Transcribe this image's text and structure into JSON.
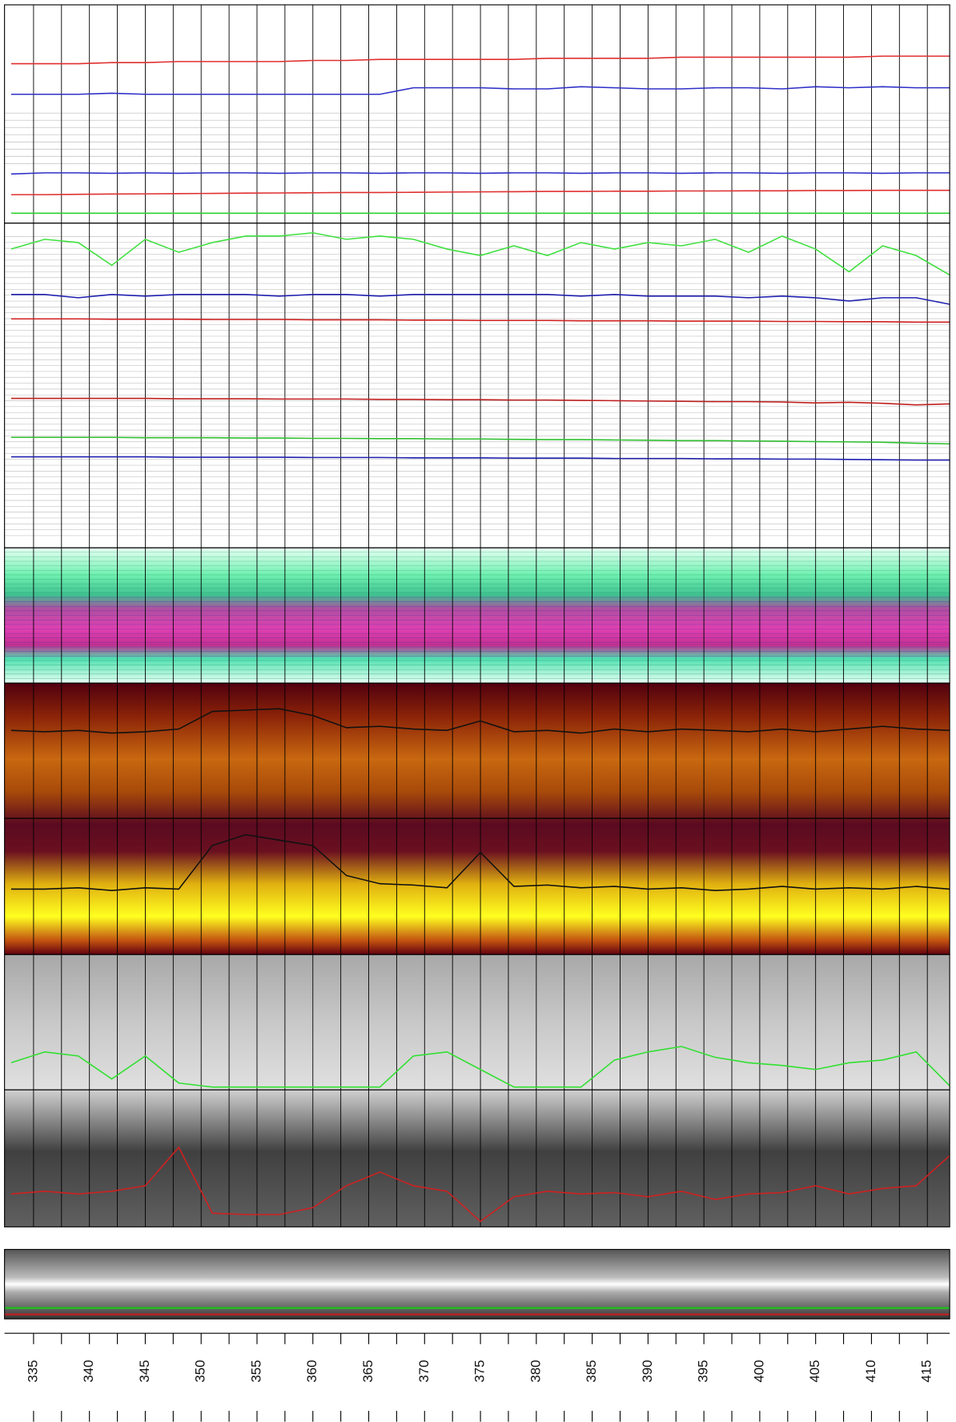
{
  "chart_data": {
    "type": "line",
    "xlim": [
      332.4,
      417
    ],
    "xticks": [
      335,
      340,
      345,
      350,
      355,
      360,
      365,
      370,
      375,
      380,
      385,
      390,
      395,
      400,
      405,
      410,
      415
    ],
    "xminorticks": [
      335,
      337.5,
      340,
      342.5,
      345,
      347.5,
      350,
      352.5,
      355,
      357.5,
      360,
      362.5,
      365,
      367.5,
      370,
      372.5,
      375,
      377.5,
      380,
      382.5,
      385,
      387.5,
      390,
      392.5,
      395,
      397.5,
      400,
      402.5,
      405,
      407.5,
      410,
      412.5,
      415
    ],
    "grid": true,
    "x": [
      333,
      336,
      339,
      342,
      345,
      348,
      351,
      354,
      357,
      360,
      363,
      366,
      369,
      372,
      375,
      378,
      381,
      384,
      387,
      390,
      393,
      396,
      399,
      402,
      405,
      408,
      411,
      414,
      417
    ],
    "panels": [
      {
        "ylim": [
          0,
          100
        ],
        "series": [
          {
            "color": "#e03030",
            "values": [
              73,
              73,
              73,
              73.5,
              73.5,
              74,
              74,
              74,
              74,
              74.5,
              74.5,
              75,
              75,
              75,
              75,
              75,
              75.5,
              75.5,
              75.5,
              75.5,
              76,
              76,
              76,
              76,
              76,
              76,
              76.5,
              76.5,
              76.5
            ]
          },
          {
            "color": "#3030c8",
            "values": [
              59,
              59,
              59,
              59.5,
              59,
              59,
              59,
              59,
              59,
              59,
              59,
              59,
              62,
              62,
              62,
              61.5,
              61.5,
              62.5,
              62,
              61.5,
              61.5,
              62,
              62,
              61.5,
              62.5,
              62,
              62.5,
              62,
              62
            ]
          },
          {
            "color": "#3030c8",
            "values": [
              22.5,
              23,
              23,
              22.8,
              23,
              22.8,
              23,
              23,
              22.8,
              23,
              23,
              22.8,
              23,
              23,
              22.8,
              23,
              23,
              22.8,
              23,
              23,
              22.8,
              23,
              23,
              22.8,
              23,
              23,
              22.8,
              23,
              23
            ]
          },
          {
            "color": "#e03030",
            "values": [
              13,
              13,
              13.2,
              13.3,
              13.4,
              13.5,
              13.6,
              13.7,
              13.8,
              13.9,
              14,
              14,
              14.1,
              14.2,
              14.3,
              14.4,
              14.5,
              14.5,
              14.6,
              14.6,
              14.7,
              14.7,
              14.8,
              14.8,
              14.9,
              14.9,
              15,
              15,
              15
            ]
          },
          {
            "color": "#30d030",
            "values": [
              4.5,
              4.5,
              4.5,
              4.5,
              4.5,
              4.5,
              4.5,
              4.5,
              4.5,
              4.5,
              4.5,
              4.5,
              4.5,
              4.5,
              4.5,
              4.5,
              4.5,
              4.5,
              4.5,
              4.5,
              4.5,
              4.5,
              4.5,
              4.5,
              4.5,
              4.5,
              4.5,
              4.5,
              4.5
            ]
          }
        ]
      },
      {
        "ylim": [
          0,
          100
        ],
        "series": [
          {
            "color": "#40e040",
            "values": [
              92,
              95,
              94,
              87,
              95,
              91,
              94,
              96,
              96,
              97,
              95,
              96,
              95,
              92,
              90,
              93,
              90,
              94,
              92,
              94,
              93,
              95,
              91,
              96,
              92,
              85,
              93,
              90,
              84
            ]
          },
          {
            "color": "#2020b0",
            "values": [
              78,
              78,
              77,
              78,
              77.5,
              78,
              78,
              78,
              77.5,
              78,
              78,
              77.5,
              78,
              78,
              78,
              78,
              78,
              77.5,
              78,
              77.5,
              77.5,
              77.5,
              77,
              77.5,
              77,
              76,
              77,
              77,
              75
            ]
          },
          {
            "color": "#d02020",
            "values": [
              70.5,
              70.5,
              70.5,
              70.4,
              70.4,
              70.4,
              70.3,
              70.3,
              70.3,
              70.2,
              70.2,
              70.2,
              70.1,
              70.1,
              70,
              70,
              70,
              69.9,
              69.9,
              69.9,
              69.8,
              69.8,
              69.8,
              69.7,
              69.7,
              69.6,
              69.6,
              69.5,
              69.5
            ]
          },
          {
            "color": "#c02020",
            "values": [
              46,
              46,
              46,
              46,
              46,
              45.9,
              45.9,
              45.9,
              45.8,
              45.8,
              45.8,
              45.7,
              45.7,
              45.6,
              45.6,
              45.5,
              45.5,
              45.4,
              45.3,
              45.2,
              45.1,
              45,
              45,
              44.9,
              44.6,
              44.8,
              44.5,
              44,
              44.3
            ]
          },
          {
            "color": "#30c030",
            "values": [
              34,
              34,
              34,
              34,
              33.9,
              33.9,
              33.9,
              33.8,
              33.8,
              33.7,
              33.7,
              33.6,
              33.6,
              33.5,
              33.5,
              33.4,
              33.3,
              33.3,
              33.2,
              33.1,
              33,
              33,
              32.9,
              32.8,
              32.7,
              32.6,
              32.5,
              32.2,
              32
            ]
          },
          {
            "color": "#2020b0",
            "values": [
              28,
              28,
              28,
              28,
              28,
              27.9,
              27.9,
              27.9,
              27.9,
              27.8,
              27.8,
              27.8,
              27.7,
              27.7,
              27.7,
              27.6,
              27.6,
              27.6,
              27.5,
              27.5,
              27.5,
              27.4,
              27.4,
              27.3,
              27.3,
              27.2,
              27.1,
              27,
              27
            ]
          }
        ]
      },
      {
        "ylim": [
          0,
          100
        ],
        "series": [
          {
            "color": "#111111",
            "values": [
              65,
              64,
              65,
              63,
              64,
              66,
              79,
              80,
              81,
              76,
              67,
              68,
              66,
              65,
              72,
              64,
              65,
              63,
              66,
              64,
              66,
              65,
              64,
              66,
              64,
              66,
              68,
              66,
              65
            ]
          }
        ]
      },
      {
        "ylim": [
          0,
          100
        ],
        "series": [
          {
            "color": "#111111",
            "values": [
              48,
              48,
              49,
              47,
              49,
              48,
              80,
              88,
              84,
              80,
              58,
              52,
              51,
              49,
              75,
              50,
              51,
              49,
              50,
              48,
              49,
              47,
              48,
              50,
              48,
              49,
              48,
              50,
              48
            ]
          }
        ]
      },
      {
        "ylim": [
          0,
          100
        ],
        "series": [
          {
            "color": "#30e030",
            "values": [
              20,
              28,
              25,
              8,
              25,
              5,
              2,
              2,
              2,
              2,
              2,
              2,
              25,
              28,
              15,
              2,
              2,
              2,
              22,
              28,
              32,
              24,
              20,
              18,
              15,
              20,
              22,
              28,
              3
            ]
          }
        ]
      },
      {
        "ylim": [
          0,
          100
        ],
        "series": [
          {
            "color": "#d02020",
            "values": [
              24,
              26,
              24,
              26,
              30,
              58,
              10,
              9,
              9,
              14,
              30,
              40,
              30,
              26,
              4,
              22,
              26,
              24,
              25,
              22,
              26,
              20,
              24,
              25,
              30,
              24,
              28,
              30,
              52
            ]
          }
        ]
      }
    ]
  }
}
